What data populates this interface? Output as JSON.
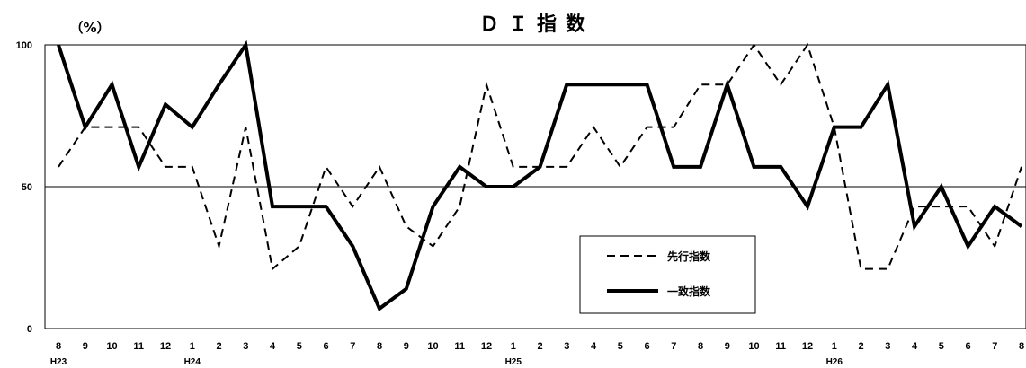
{
  "chart_data": {
    "type": "line",
    "title": "ＤＩ指数",
    "ylabel": "（%）",
    "ylim": [
      0,
      100
    ],
    "yticks": [
      0,
      50,
      100
    ],
    "grid": "horizontal at 50",
    "legend_placement": "lower-right",
    "categories": [
      "8",
      "9",
      "10",
      "11",
      "12",
      "1",
      "2",
      "3",
      "4",
      "5",
      "6",
      "7",
      "8",
      "9",
      "10",
      "11",
      "12",
      "1",
      "2",
      "3",
      "4",
      "5",
      "6",
      "7",
      "8",
      "9",
      "10",
      "11",
      "12",
      "1",
      "2",
      "3",
      "4",
      "5",
      "6",
      "7",
      "8"
    ],
    "era_labels": [
      {
        "label": "H23",
        "index": 0
      },
      {
        "label": "H24",
        "index": 5
      },
      {
        "label": "H25",
        "index": 17
      },
      {
        "label": "H26",
        "index": 29
      }
    ],
    "series": [
      {
        "name": "先行指数",
        "style": "dashed",
        "color": "#000000",
        "values": [
          57,
          71,
          71,
          71,
          57,
          57,
          29,
          71,
          21,
          29,
          57,
          43,
          57,
          36,
          29,
          43,
          86,
          57,
          57,
          57,
          71,
          57,
          71,
          71,
          86,
          86,
          100,
          86,
          100,
          71,
          21,
          21,
          43,
          43,
          43,
          29,
          57
        ]
      },
      {
        "name": "一致指数",
        "style": "solid",
        "color": "#000000",
        "values": [
          100,
          71,
          86,
          57,
          79,
          71,
          86,
          100,
          43,
          43,
          43,
          29,
          7,
          14,
          43,
          57,
          50,
          50,
          57,
          86,
          86,
          86,
          86,
          57,
          57,
          86,
          57,
          57,
          43,
          71,
          71,
          86,
          36,
          50,
          29,
          43,
          36
        ]
      }
    ]
  }
}
